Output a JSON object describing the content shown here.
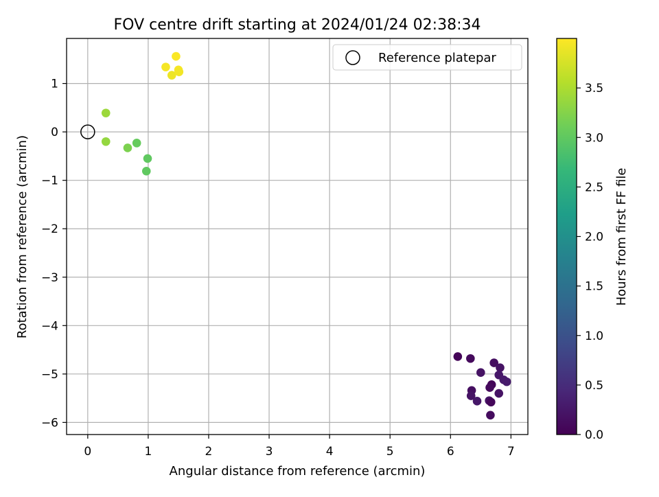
{
  "chart_data": {
    "type": "scatter",
    "title": "FOV centre drift starting at 2024/01/24 02:38:34",
    "xlabel": "Angular distance from reference (arcmin)",
    "ylabel": "Rotation from reference (arcmin)",
    "xlim": [
      -0.35,
      7.28
    ],
    "ylim": [
      -6.25,
      1.93
    ],
    "xticks": [
      0,
      1,
      2,
      3,
      4,
      5,
      6,
      7
    ],
    "yticks": [
      1,
      0,
      -1,
      -2,
      -3,
      -4,
      -5,
      -6
    ],
    "grid": true,
    "legend": {
      "position": "top-right",
      "entries": [
        "Reference platepar"
      ]
    },
    "reference": {
      "x": 0,
      "y": 0,
      "label": "Reference platepar"
    },
    "colorbar": {
      "label": "Hours from first FF file",
      "range": [
        0,
        4.0
      ],
      "ticks": [
        "0.0",
        "0.5",
        "1.0",
        "1.5",
        "2.0",
        "2.5",
        "3.0",
        "3.5"
      ],
      "colormap": [
        "#440154",
        "#482878",
        "#3e4a89",
        "#31688e",
        "#26828e",
        "#1f9e89",
        "#35b779",
        "#6ece58",
        "#b5de2b",
        "#fde725"
      ]
    },
    "points": [
      {
        "x": 6.12,
        "y": -4.64,
        "t": 0.05
      },
      {
        "x": 6.33,
        "y": -4.68,
        "t": 0.1
      },
      {
        "x": 6.5,
        "y": -4.97,
        "t": 0.2
      },
      {
        "x": 6.72,
        "y": -4.77,
        "t": 0.15
      },
      {
        "x": 6.82,
        "y": -4.87,
        "t": 0.2
      },
      {
        "x": 6.8,
        "y": -5.02,
        "t": 0.25
      },
      {
        "x": 6.88,
        "y": -5.12,
        "t": 0.28
      },
      {
        "x": 6.93,
        "y": -5.16,
        "t": 0.3
      },
      {
        "x": 6.68,
        "y": -5.22,
        "t": 0.05
      },
      {
        "x": 6.65,
        "y": -5.28,
        "t": 0.1
      },
      {
        "x": 6.35,
        "y": -5.34,
        "t": 0.15
      },
      {
        "x": 6.34,
        "y": -5.45,
        "t": 0.2
      },
      {
        "x": 6.8,
        "y": -5.4,
        "t": 0.2
      },
      {
        "x": 6.44,
        "y": -5.56,
        "t": 0.25
      },
      {
        "x": 6.64,
        "y": -5.55,
        "t": 0.22
      },
      {
        "x": 6.67,
        "y": -5.58,
        "t": 0.08
      },
      {
        "x": 6.66,
        "y": -5.85,
        "t": 0.12
      },
      {
        "x": 0.3,
        "y": 0.39,
        "t": 3.4
      },
      {
        "x": 0.3,
        "y": -0.2,
        "t": 3.35
      },
      {
        "x": 0.66,
        "y": -0.33,
        "t": 3.2
      },
      {
        "x": 0.81,
        "y": -0.23,
        "t": 3.05
      },
      {
        "x": 0.99,
        "y": -0.55,
        "t": 3.0
      },
      {
        "x": 0.97,
        "y": -0.81,
        "t": 3.0
      },
      {
        "x": 1.29,
        "y": 1.34,
        "t": 3.95
      },
      {
        "x": 1.46,
        "y": 1.56,
        "t": 3.98
      },
      {
        "x": 1.39,
        "y": 1.17,
        "t": 3.9
      },
      {
        "x": 1.5,
        "y": 1.28,
        "t": 3.96
      },
      {
        "x": 1.51,
        "y": 1.24,
        "t": 3.93
      }
    ]
  }
}
